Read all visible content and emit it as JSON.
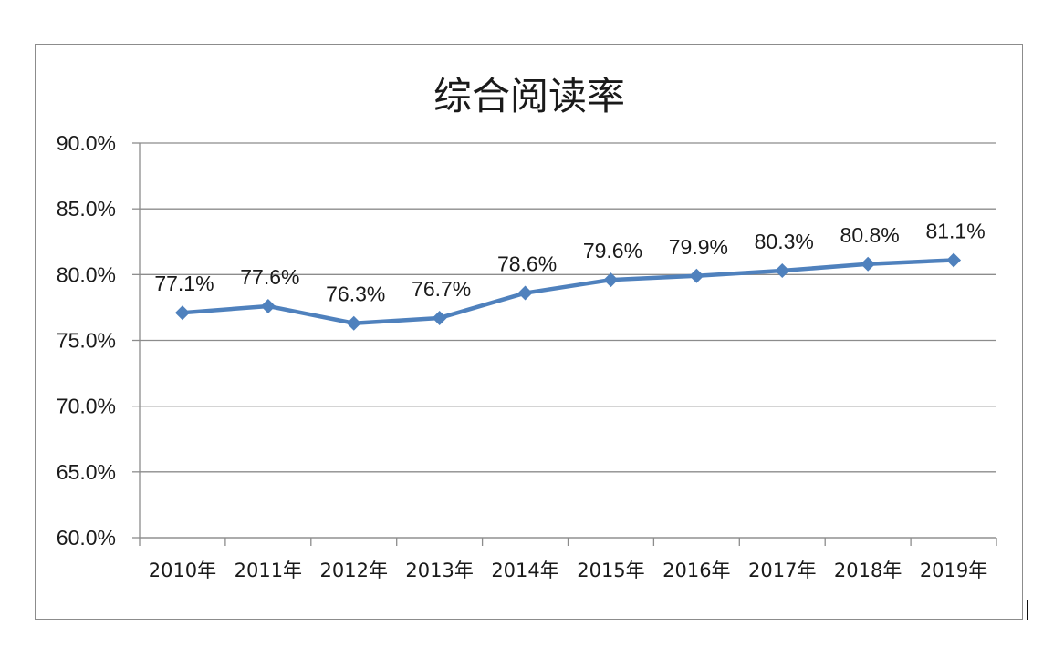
{
  "chart_data": {
    "type": "line",
    "title": "综合阅读率",
    "categories": [
      "2010年",
      "2011年",
      "2012年",
      "2013年",
      "2014年",
      "2015年",
      "2016年",
      "2017年",
      "2018年",
      "2019年"
    ],
    "series": [
      {
        "values": [
          77.1,
          77.6,
          76.3,
          76.7,
          78.6,
          79.6,
          79.9,
          80.3,
          80.8,
          81.1
        ],
        "labels": [
          "77.1%",
          "77.6%",
          "76.3%",
          "76.7%",
          "78.6%",
          "79.6%",
          "79.9%",
          "80.3%",
          "80.8%",
          "81.1%"
        ],
        "color": "#4f81bd",
        "marker": "diamond"
      }
    ],
    "ylim": [
      60,
      90
    ],
    "yticks": [
      90,
      85,
      80,
      75,
      70,
      65,
      60
    ],
    "ytick_labels": [
      "90.0%",
      "85.0%",
      "80.0%",
      "75.0%",
      "70.0%",
      "65.0%",
      "60.0%"
    ],
    "xlabel": "",
    "ylabel": "",
    "grid": true,
    "grid_color": "#8c8c8c",
    "legend": "none"
  }
}
